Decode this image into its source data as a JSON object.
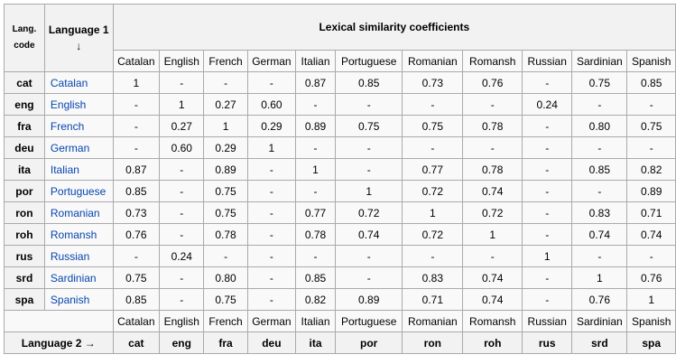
{
  "header": {
    "lang_code_line1": "Lang.",
    "lang_code_line2": "code",
    "language1_label": "Language 1",
    "language1_arrow": "↓",
    "title": "Lexical similarity coefficients",
    "language2_label": "Language 2 →"
  },
  "columns": {
    "names": [
      "Catalan",
      "English",
      "French",
      "German",
      "Italian",
      "Portuguese",
      "Romanian",
      "Romansh",
      "Russian",
      "Sardinian",
      "Spanish"
    ],
    "codes": [
      "cat",
      "eng",
      "fra",
      "deu",
      "ita",
      "por",
      "ron",
      "roh",
      "rus",
      "srd",
      "spa"
    ]
  },
  "rows": [
    {
      "code": "cat",
      "name": "Catalan",
      "values": [
        "1",
        "-",
        "-",
        "-",
        "0.87",
        "0.85",
        "0.73",
        "0.76",
        "-",
        "0.75",
        "0.85"
      ]
    },
    {
      "code": "eng",
      "name": "English",
      "values": [
        "-",
        "1",
        "0.27",
        "0.60",
        "-",
        "-",
        "-",
        "-",
        "0.24",
        "-",
        "-"
      ]
    },
    {
      "code": "fra",
      "name": "French",
      "values": [
        "-",
        "0.27",
        "1",
        "0.29",
        "0.89",
        "0.75",
        "0.75",
        "0.78",
        "-",
        "0.80",
        "0.75"
      ]
    },
    {
      "code": "deu",
      "name": "German",
      "values": [
        "-",
        "0.60",
        "0.29",
        "1",
        "-",
        "-",
        "-",
        "-",
        "-",
        "-",
        "-"
      ]
    },
    {
      "code": "ita",
      "name": "Italian",
      "values": [
        "0.87",
        "-",
        "0.89",
        "-",
        "1",
        "-",
        "0.77",
        "0.78",
        "-",
        "0.85",
        "0.82"
      ]
    },
    {
      "code": "por",
      "name": "Portuguese",
      "values": [
        "0.85",
        "-",
        "0.75",
        "-",
        "-",
        "1",
        "0.72",
        "0.74",
        "-",
        "-",
        "0.89"
      ]
    },
    {
      "code": "ron",
      "name": "Romanian",
      "values": [
        "0.73",
        "-",
        "0.75",
        "-",
        "0.77",
        "0.72",
        "1",
        "0.72",
        "-",
        "0.83",
        "0.71"
      ]
    },
    {
      "code": "roh",
      "name": "Romansh",
      "values": [
        "0.76",
        "-",
        "0.78",
        "-",
        "0.78",
        "0.74",
        "0.72",
        "1",
        "-",
        "0.74",
        "0.74"
      ]
    },
    {
      "code": "rus",
      "name": "Russian",
      "values": [
        "-",
        "0.24",
        "-",
        "-",
        "-",
        "-",
        "-",
        "-",
        "1",
        "-",
        "-"
      ]
    },
    {
      "code": "srd",
      "name": "Sardinian",
      "values": [
        "0.75",
        "-",
        "0.80",
        "-",
        "0.85",
        "-",
        "0.83",
        "0.74",
        "-",
        "1",
        "0.76"
      ]
    },
    {
      "code": "spa",
      "name": "Spanish",
      "values": [
        "0.85",
        "-",
        "0.75",
        "-",
        "0.82",
        "0.89",
        "0.71",
        "0.74",
        "-",
        "0.76",
        "1"
      ]
    }
  ]
}
